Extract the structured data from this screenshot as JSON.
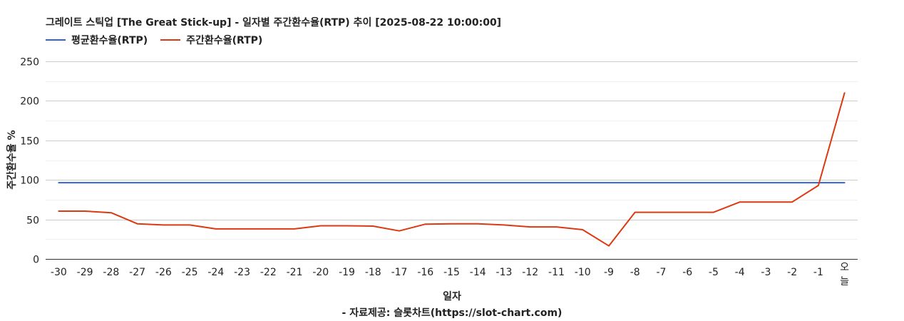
{
  "chart_data": {
    "type": "line",
    "title": "그레이트 스틱업 [The Great Stick-up] - 일자별 주간환수율(RTP) 추이 [2025-08-22 10:00:00]",
    "xlabel": "일자",
    "ylabel": "주간환수율 %",
    "source": "- 자료제공: 슬롯차트(https://slot-chart.com)",
    "categories": [
      "-30",
      "-29",
      "-28",
      "-27",
      "-26",
      "-25",
      "-24",
      "-23",
      "-22",
      "-21",
      "-20",
      "-19",
      "-18",
      "-17",
      "-16",
      "-15",
      "-14",
      "-13",
      "-12",
      "-11",
      "-10",
      "-9",
      "-8",
      "-7",
      "-6",
      "-5",
      "-4",
      "-3",
      "-2",
      "-1",
      "오늘"
    ],
    "ylim": [
      0,
      250
    ],
    "yticks": [
      0,
      50,
      100,
      150,
      200,
      250
    ],
    "grid": true,
    "legend_position": "top-left",
    "series": [
      {
        "name": "평균환수율(RTP)",
        "color": "#3366cc",
        "values": [
          96.5,
          96.5,
          96.5,
          96.5,
          96.5,
          96.5,
          96.5,
          96.5,
          96.5,
          96.5,
          96.5,
          96.5,
          96.5,
          96.5,
          96.5,
          96.5,
          96.5,
          96.5,
          96.5,
          96.5,
          96.5,
          96.5,
          96.5,
          96.5,
          96.5,
          96.5,
          96.5,
          96.5,
          96.5,
          96.5,
          96.5
        ]
      },
      {
        "name": "주간환수율(RTP)",
        "color": "#dc3912",
        "values": [
          60.5,
          60.5,
          58.5,
          44.5,
          43,
          43,
          38,
          38,
          38,
          38,
          42,
          42,
          41.5,
          35.5,
          44,
          44.5,
          44.5,
          43,
          40.5,
          40.5,
          37,
          16.5,
          59,
          59,
          59,
          59,
          72,
          72,
          72,
          93,
          210
        ]
      }
    ]
  }
}
